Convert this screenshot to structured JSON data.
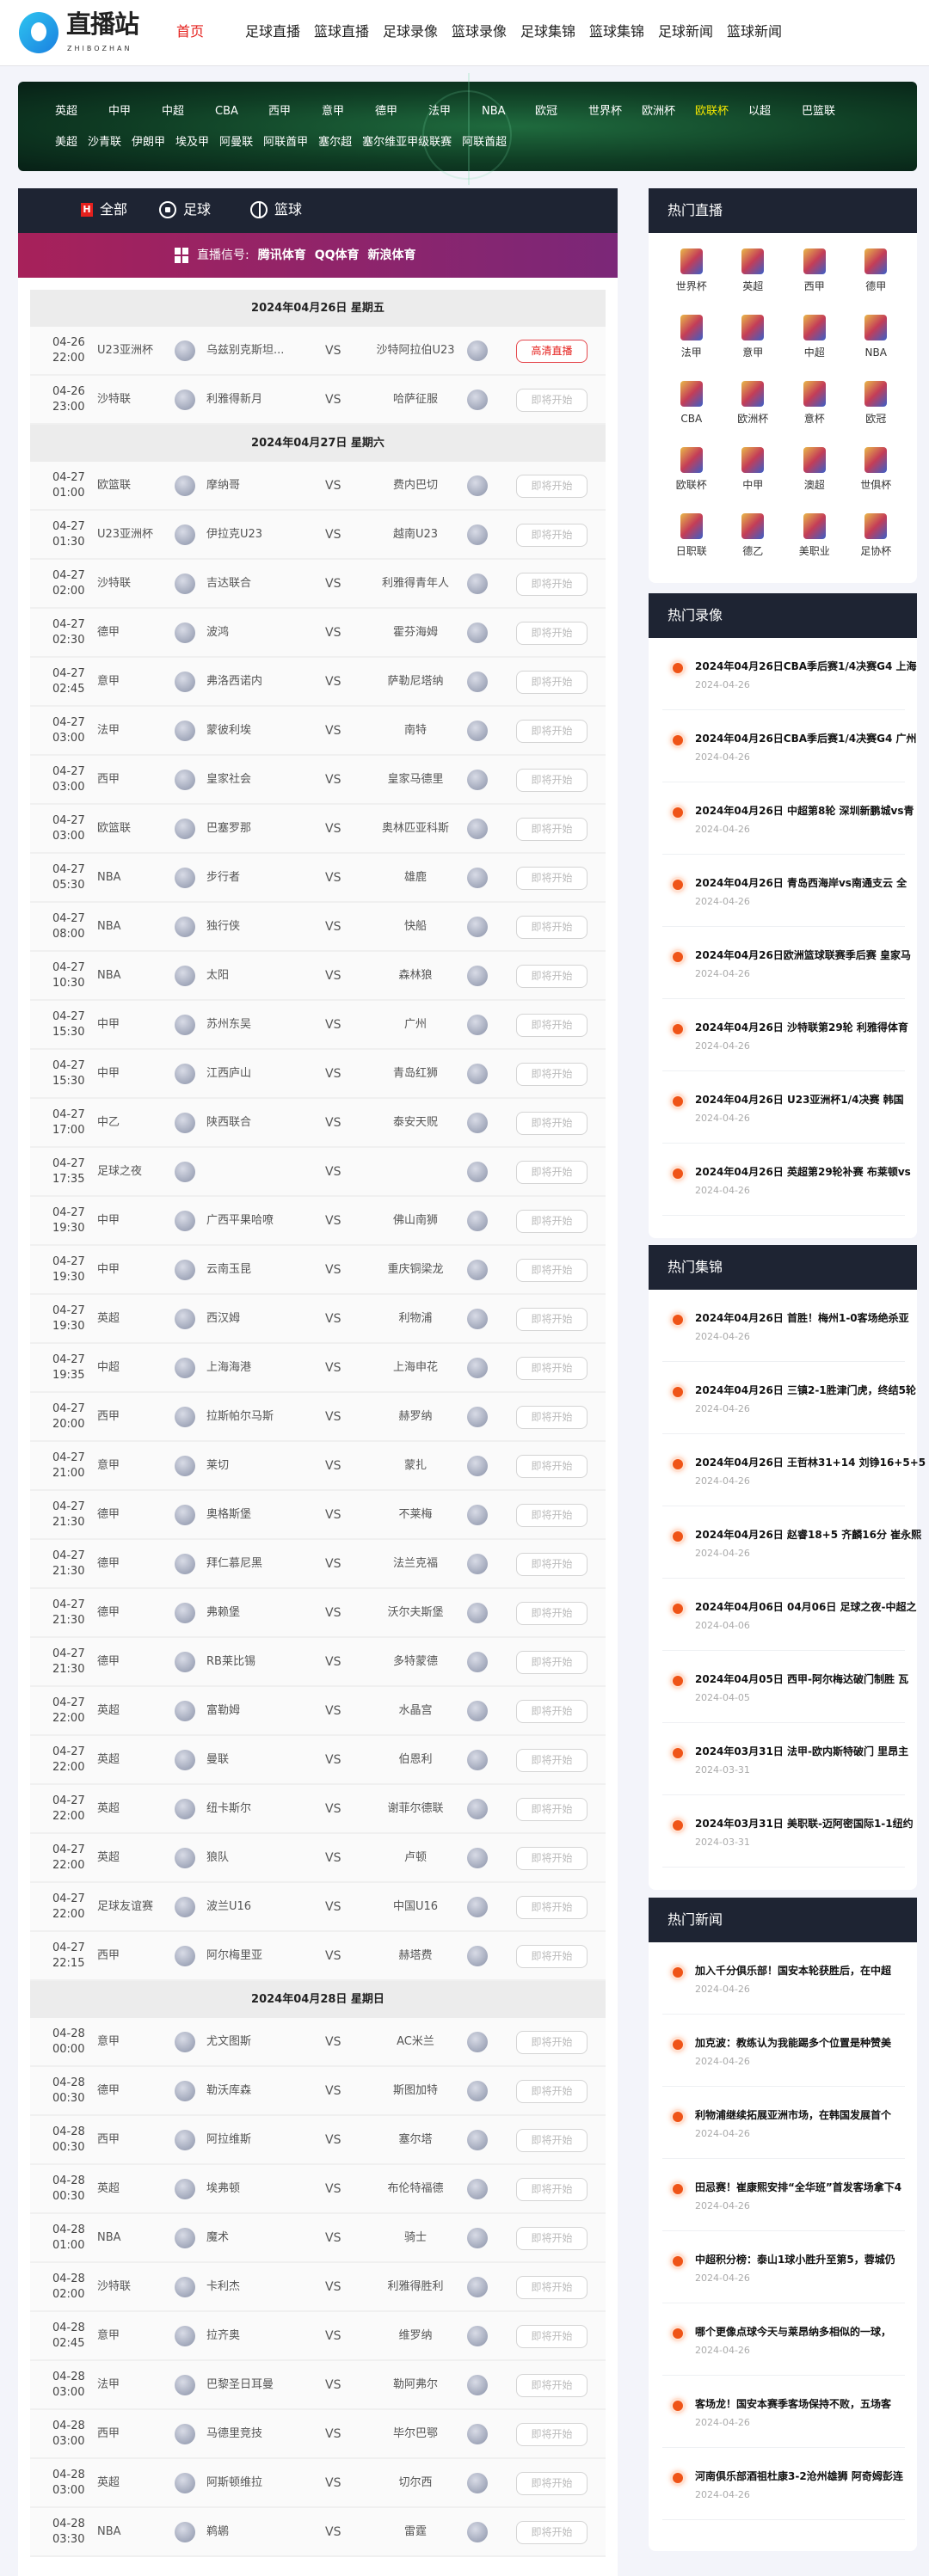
{
  "header": {
    "logo_text": "直播站",
    "logo_sub": "ZHIBOZHAN",
    "nav": [
      "首页",
      "足球直播",
      "篮球直播",
      "足球录像",
      "篮球录像",
      "足球集锦",
      "篮球集锦",
      "足球新闻",
      "篮球新闻"
    ],
    "active_nav": "首页"
  },
  "banner": {
    "row1": [
      "英超",
      "中甲",
      "中超",
      "CBA",
      "西甲",
      "意甲",
      "德甲",
      "法甲",
      "NBA",
      "欧冠",
      "世界杯",
      "欧洲杯",
      "欧联杯",
      "以超",
      "巴篮联"
    ],
    "row2": [
      "美超",
      "沙青联",
      "伊朗甲",
      "埃及甲",
      "阿曼联",
      "阿联酋甲",
      "塞尔超",
      "塞尔维亚甲级联赛",
      "阿联酋超"
    ],
    "selected": "欧联杯",
    "selected_color": "#f3e600"
  },
  "tabs": [
    {
      "label": "全部",
      "icon": "h-icon"
    },
    {
      "label": "足球",
      "icon": "soccer-ball-icon"
    },
    {
      "label": "篮球",
      "icon": "basketball-icon"
    }
  ],
  "signal": {
    "label": "直播信号:",
    "sources": [
      "腾讯体育",
      "QQ体育",
      "新浪体育"
    ]
  },
  "days": [
    {
      "label": "2024年04月26日 星期五",
      "matches": [
        {
          "date": "04-26",
          "time": "22:00",
          "league": "U23亚洲杯",
          "home": "乌兹别克斯坦...",
          "away": "沙特阿拉伯U23",
          "status": "高清直播",
          "live": true
        },
        {
          "date": "04-26",
          "time": "23:00",
          "league": "沙特联",
          "home": "利雅得新月",
          "away": "哈萨征服",
          "status": "即将开始"
        }
      ]
    },
    {
      "label": "2024年04月27日 星期六",
      "matches": [
        {
          "date": "04-27",
          "time": "01:00",
          "league": "欧篮联",
          "home": "摩纳哥",
          "away": "费内巴切",
          "status": "即将开始"
        },
        {
          "date": "04-27",
          "time": "01:30",
          "league": "U23亚洲杯",
          "home": "伊拉克U23",
          "away": "越南U23",
          "status": "即将开始"
        },
        {
          "date": "04-27",
          "time": "02:00",
          "league": "沙特联",
          "home": "吉达联合",
          "away": "利雅得青年人",
          "status": "即将开始"
        },
        {
          "date": "04-27",
          "time": "02:30",
          "league": "德甲",
          "home": "波鸿",
          "away": "霍芬海姆",
          "status": "即将开始"
        },
        {
          "date": "04-27",
          "time": "02:45",
          "league": "意甲",
          "home": "弗洛西诺内",
          "away": "萨勒尼塔纳",
          "status": "即将开始"
        },
        {
          "date": "04-27",
          "time": "03:00",
          "league": "法甲",
          "home": "蒙彼利埃",
          "away": "南特",
          "status": "即将开始"
        },
        {
          "date": "04-27",
          "time": "03:00",
          "league": "西甲",
          "home": "皇家社会",
          "away": "皇家马德里",
          "status": "即将开始"
        },
        {
          "date": "04-27",
          "time": "03:00",
          "league": "欧篮联",
          "home": "巴塞罗那",
          "away": "奥林匹亚科斯",
          "status": "即将开始"
        },
        {
          "date": "04-27",
          "time": "05:30",
          "league": "NBA",
          "home": "步行者",
          "away": "雄鹿",
          "status": "即将开始"
        },
        {
          "date": "04-27",
          "time": "08:00",
          "league": "NBA",
          "home": "独行侠",
          "away": "快船",
          "status": "即将开始"
        },
        {
          "date": "04-27",
          "time": "10:30",
          "league": "NBA",
          "home": "太阳",
          "away": "森林狼",
          "status": "即将开始"
        },
        {
          "date": "04-27",
          "time": "15:30",
          "league": "中甲",
          "home": "苏州东吴",
          "away": "广州",
          "status": "即将开始"
        },
        {
          "date": "04-27",
          "time": "15:30",
          "league": "中甲",
          "home": "江西庐山",
          "away": "青岛红狮",
          "status": "即将开始"
        },
        {
          "date": "04-27",
          "time": "17:00",
          "league": "中乙",
          "home": "陕西联合",
          "away": "泰安天贶",
          "status": "即将开始"
        },
        {
          "date": "04-27",
          "time": "17:35",
          "league": "足球之夜",
          "home": "",
          "away": "",
          "status": "即将开始"
        },
        {
          "date": "04-27",
          "time": "19:30",
          "league": "中甲",
          "home": "广西平果哈嘹",
          "away": "佛山南狮",
          "status": "即将开始"
        },
        {
          "date": "04-27",
          "time": "19:30",
          "league": "中甲",
          "home": "云南玉昆",
          "away": "重庆铜梁龙",
          "status": "即将开始"
        },
        {
          "date": "04-27",
          "time": "19:30",
          "league": "英超",
          "home": "西汉姆",
          "away": "利物浦",
          "status": "即将开始"
        },
        {
          "date": "04-27",
          "time": "19:35",
          "league": "中超",
          "home": "上海海港",
          "away": "上海申花",
          "status": "即将开始"
        },
        {
          "date": "04-27",
          "time": "20:00",
          "league": "西甲",
          "home": "拉斯帕尔马斯",
          "away": "赫罗纳",
          "status": "即将开始"
        },
        {
          "date": "04-27",
          "time": "21:00",
          "league": "意甲",
          "home": "莱切",
          "away": "蒙扎",
          "status": "即将开始"
        },
        {
          "date": "04-27",
          "time": "21:30",
          "league": "德甲",
          "home": "奥格斯堡",
          "away": "不莱梅",
          "status": "即将开始"
        },
        {
          "date": "04-27",
          "time": "21:30",
          "league": "德甲",
          "home": "拜仁慕尼黑",
          "away": "法兰克福",
          "status": "即将开始"
        },
        {
          "date": "04-27",
          "time": "21:30",
          "league": "德甲",
          "home": "弗赖堡",
          "away": "沃尔夫斯堡",
          "status": "即将开始"
        },
        {
          "date": "04-27",
          "time": "21:30",
          "league": "德甲",
          "home": "RB莱比锡",
          "away": "多特蒙德",
          "status": "即将开始"
        },
        {
          "date": "04-27",
          "time": "22:00",
          "league": "英超",
          "home": "富勒姆",
          "away": "水晶宫",
          "status": "即将开始"
        },
        {
          "date": "04-27",
          "time": "22:00",
          "league": "英超",
          "home": "曼联",
          "away": "伯恩利",
          "status": "即将开始"
        },
        {
          "date": "04-27",
          "time": "22:00",
          "league": "英超",
          "home": "纽卡斯尔",
          "away": "谢菲尔德联",
          "status": "即将开始"
        },
        {
          "date": "04-27",
          "time": "22:00",
          "league": "英超",
          "home": "狼队",
          "away": "卢顿",
          "status": "即将开始"
        },
        {
          "date": "04-27",
          "time": "22:00",
          "league": "足球友谊赛",
          "home": "波兰U16",
          "away": "中国U16",
          "status": "即将开始"
        },
        {
          "date": "04-27",
          "time": "22:15",
          "league": "西甲",
          "home": "阿尔梅里亚",
          "away": "赫塔费",
          "status": "即将开始"
        }
      ]
    },
    {
      "label": "2024年04月28日 星期日",
      "matches": [
        {
          "date": "04-28",
          "time": "00:00",
          "league": "意甲",
          "home": "尤文图斯",
          "away": "AC米兰",
          "status": "即将开始"
        },
        {
          "date": "04-28",
          "time": "00:30",
          "league": "德甲",
          "home": "勒沃库森",
          "away": "斯图加特",
          "status": "即将开始"
        },
        {
          "date": "04-28",
          "time": "00:30",
          "league": "西甲",
          "home": "阿拉维斯",
          "away": "塞尔塔",
          "status": "即将开始"
        },
        {
          "date": "04-28",
          "time": "00:30",
          "league": "英超",
          "home": "埃弗顿",
          "away": "布伦特福德",
          "status": "即将开始"
        },
        {
          "date": "04-28",
          "time": "01:00",
          "league": "NBA",
          "home": "魔术",
          "away": "骑士",
          "status": "即将开始"
        },
        {
          "date": "04-28",
          "time": "02:00",
          "league": "沙特联",
          "home": "卡利杰",
          "away": "利雅得胜利",
          "status": "即将开始"
        },
        {
          "date": "04-28",
          "time": "02:45",
          "league": "意甲",
          "home": "拉齐奥",
          "away": "维罗纳",
          "status": "即将开始"
        },
        {
          "date": "04-28",
          "time": "03:00",
          "league": "法甲",
          "home": "巴黎圣日耳曼",
          "away": "勒阿弗尔",
          "status": "即将开始"
        },
        {
          "date": "04-28",
          "time": "03:00",
          "league": "西甲",
          "home": "马德里竞技",
          "away": "毕尔巴鄂",
          "status": "即将开始"
        },
        {
          "date": "04-28",
          "time": "03:00",
          "league": "英超",
          "home": "阿斯顿维拉",
          "away": "切尔西",
          "status": "即将开始"
        },
        {
          "date": "04-28",
          "time": "03:30",
          "league": "NBA",
          "home": "鹈鹕",
          "away": "雷霆",
          "status": "即将开始"
        }
      ]
    }
  ],
  "sidebar": {
    "hot_live": {
      "title": "热门直播",
      "items": [
        "世界杯",
        "英超",
        "西甲",
        "德甲",
        "法甲",
        "意甲",
        "中超",
        "NBA",
        "CBA",
        "欧洲杯",
        "意杯",
        "欧冠",
        "欧联杯",
        "中甲",
        "澳超",
        "世俱杯",
        "日职联",
        "德乙",
        "美职业",
        "足协杯"
      ]
    },
    "hot_video": {
      "title": "热门录像",
      "items": [
        {
          "title": "2024年04月26日CBA季后赛1/4决赛G4 上海",
          "date": "2024-04-26"
        },
        {
          "title": "2024年04月26日CBA季后赛1/4决赛G4 广州",
          "date": "2024-04-26"
        },
        {
          "title": "2024年04月26日 中超第8轮 深圳新鹏城vs青",
          "date": "2024-04-26"
        },
        {
          "title": "2024年04月26日 青岛西海岸vs南通支云 全",
          "date": "2024-04-26"
        },
        {
          "title": "2024年04月26日欧洲篮球联赛季后赛 皇家马",
          "date": "2024-04-26"
        },
        {
          "title": "2024年04月26日 沙特联第29轮 利雅得体育",
          "date": "2024-04-26"
        },
        {
          "title": "2024年04月26日 U23亚洲杯1/4决赛 韩国",
          "date": "2024-04-26"
        },
        {
          "title": "2024年04月26日 英超第29轮补赛 布莱顿vs",
          "date": "2024-04-26"
        }
      ]
    },
    "hot_highlights": {
      "title": "热门集锦",
      "items": [
        {
          "title": "2024年04月26日 首胜！梅州1-0客场绝杀亚",
          "date": "2024-04-26"
        },
        {
          "title": "2024年04月26日 三镇2-1胜津门虎，终结5轮",
          "date": "2024-04-26"
        },
        {
          "title": "2024年04月26日 王哲林31+14 刘铮16+5+5",
          "date": "2024-04-26"
        },
        {
          "title": "2024年04月26日 赵睿18+5 齐麟16分 崔永熙",
          "date": "2024-04-26"
        },
        {
          "title": "2024年04月06日 04月06日 足球之夜-中超之",
          "date": "2024-04-06"
        },
        {
          "title": "2024年04月05日 西甲-阿尔梅达破门制胜 瓦",
          "date": "2024-04-05"
        },
        {
          "title": "2024年03月31日 法甲-欧内斯特破门 里昂主",
          "date": "2024-03-31"
        },
        {
          "title": "2024年03月31日 美职联-迈阿密国际1-1纽约",
          "date": "2024-03-31"
        }
      ]
    },
    "hot_news": {
      "title": "热门新闻",
      "items": [
        {
          "title": "加入千分俱乐部！国安本轮获胜后，在中超",
          "date": "2024-04-26"
        },
        {
          "title": "加克波：教练认为我能踢多个位置是种赞美",
          "date": "2024-04-26"
        },
        {
          "title": "利物浦继续拓展亚洲市场，在韩国发展首个",
          "date": "2024-04-26"
        },
        {
          "title": "田忌赛！崔康熙安排“全华班”首发客场拿下4",
          "date": "2024-04-26"
        },
        {
          "title": "中超积分榜：泰山1球小胜升至第5，蓉城仍",
          "date": "2024-04-26"
        },
        {
          "title": "哪个更像点球今天与莱昂纳多相似的一球，",
          "date": "2024-04-26"
        },
        {
          "title": "客场龙！国安本赛季客场保持不败，五场客",
          "date": "2024-04-26"
        },
        {
          "title": "河南俱乐部酒祖杜康3-2沧州雄狮 阿奇姆彭连",
          "date": "2024-04-26"
        }
      ]
    }
  }
}
